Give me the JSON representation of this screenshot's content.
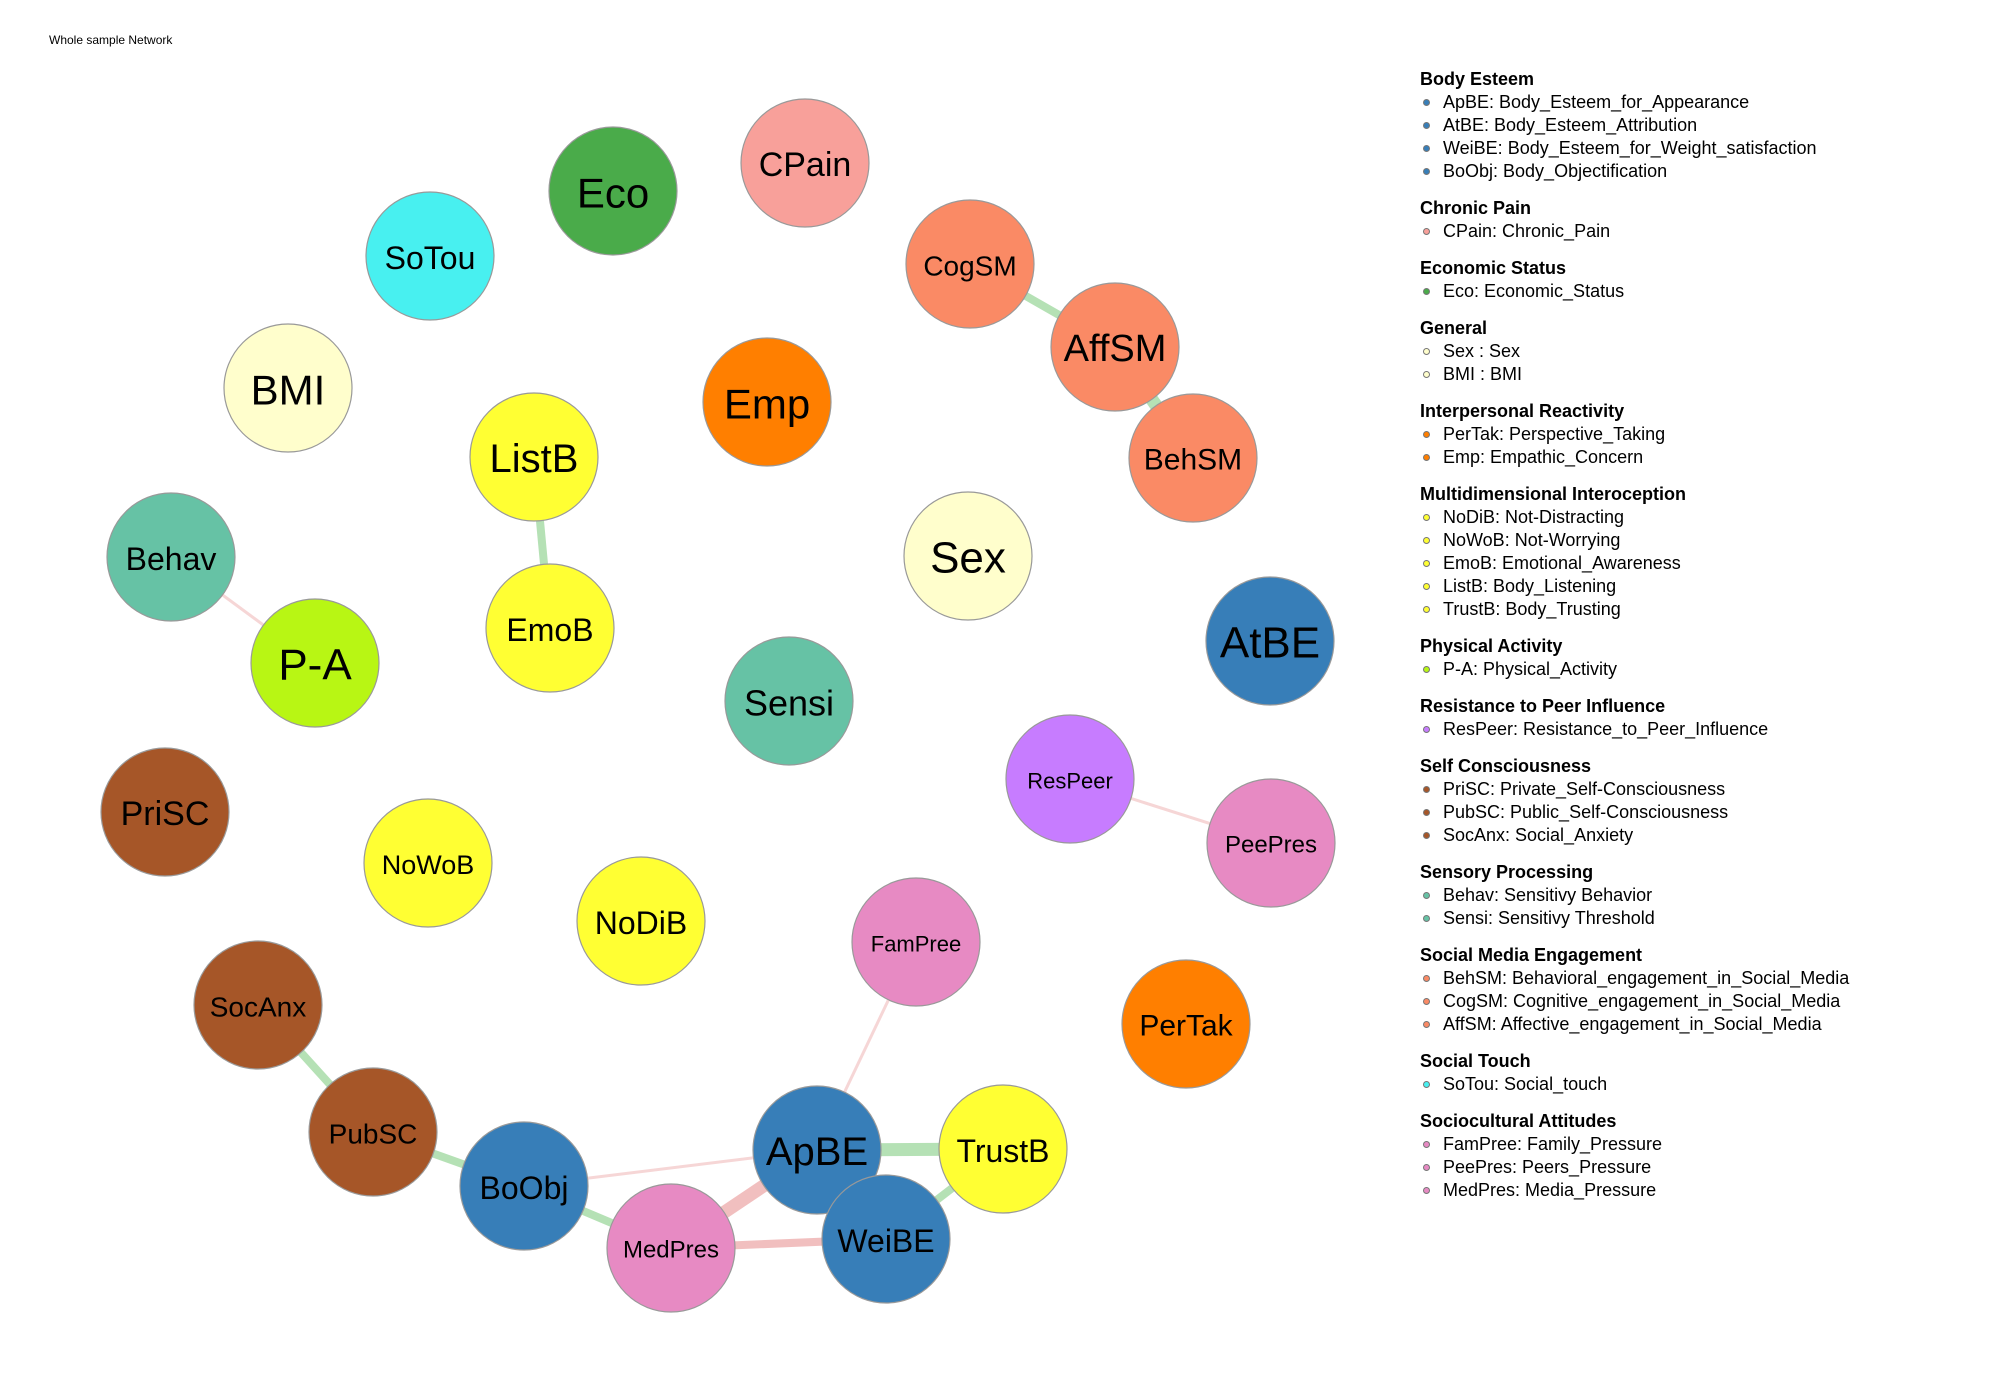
{
  "title": "Whole sample Network",
  "nodes": [
    {
      "id": "CPain",
      "label": "CPain",
      "color": "#f8a09a"
    },
    {
      "id": "Eco",
      "label": "Eco",
      "color": "#4aab4a"
    },
    {
      "id": "SoTou",
      "label": "SoTou",
      "color": "#48f0f0"
    },
    {
      "id": "BMI",
      "label": "BMI",
      "color": "#fffecc"
    },
    {
      "id": "CogSM",
      "label": "CogSM",
      "color": "#fa8a65"
    },
    {
      "id": "AffSM",
      "label": "AffSM",
      "color": "#fa8a65"
    },
    {
      "id": "BehSM",
      "label": "BehSM",
      "color": "#fa8a65"
    },
    {
      "id": "Emp",
      "label": "Emp",
      "color": "#ff7f00"
    },
    {
      "id": "ListB",
      "label": "ListB",
      "color": "#ffff33"
    },
    {
      "id": "EmoB",
      "label": "EmoB",
      "color": "#ffff33"
    },
    {
      "id": "Sex",
      "label": "Sex",
      "color": "#fffecc"
    },
    {
      "id": "Behav",
      "label": "Behav",
      "color": "#66c2a5"
    },
    {
      "id": "P-A",
      "label": "P-A",
      "color": "#b8f614"
    },
    {
      "id": "AtBE",
      "label": "AtBE",
      "color": "#377eb8"
    },
    {
      "id": "Sensi",
      "label": "Sensi",
      "color": "#66c2a5"
    },
    {
      "id": "ResPeer",
      "label": "ResPeer",
      "color": "#c77cff"
    },
    {
      "id": "PeePres",
      "label": "PeePres",
      "color": "#e78ac3"
    },
    {
      "id": "PriSC",
      "label": "PriSC",
      "color": "#a65628"
    },
    {
      "id": "NoWoB",
      "label": "NoWoB",
      "color": "#ffff33"
    },
    {
      "id": "NoDiB",
      "label": "NoDiB",
      "color": "#ffff33"
    },
    {
      "id": "FamPree",
      "label": "FamPree",
      "color": "#e78ac3"
    },
    {
      "id": "PerTak",
      "label": "PerTak",
      "color": "#ff7f00"
    },
    {
      "id": "SocAnx",
      "label": "SocAnx",
      "color": "#a65628"
    },
    {
      "id": "PubSC",
      "label": "PubSC",
      "color": "#a65628"
    },
    {
      "id": "BoObj",
      "label": "BoObj",
      "color": "#377eb8"
    },
    {
      "id": "ApBE",
      "label": "ApBE",
      "color": "#377eb8"
    },
    {
      "id": "TrustB",
      "label": "TrustB",
      "color": "#ffff33"
    },
    {
      "id": "MedPres",
      "label": "MedPres",
      "color": "#e78ac3"
    },
    {
      "id": "WeiBE",
      "label": "WeiBE",
      "color": "#377eb8"
    }
  ],
  "edges": [
    {
      "from": "CogSM",
      "to": "AffSM",
      "sign": "positive",
      "strength": "weak"
    },
    {
      "from": "AffSM",
      "to": "BehSM",
      "sign": "positive",
      "strength": "moderate"
    },
    {
      "from": "ListB",
      "to": "EmoB",
      "sign": "positive",
      "strength": "weak"
    },
    {
      "from": "Behav",
      "to": "P-A",
      "sign": "negative",
      "strength": "very weak"
    },
    {
      "from": "ResPeer",
      "to": "PeePres",
      "sign": "negative",
      "strength": "very weak"
    },
    {
      "from": "SocAnx",
      "to": "PubSC",
      "sign": "positive",
      "strength": "weak"
    },
    {
      "from": "PubSC",
      "to": "BoObj",
      "sign": "positive",
      "strength": "weak"
    },
    {
      "from": "BoObj",
      "to": "MedPres",
      "sign": "positive",
      "strength": "weak"
    },
    {
      "from": "BoObj",
      "to": "ApBE",
      "sign": "negative",
      "strength": "very weak"
    },
    {
      "from": "FamPree",
      "to": "ApBE",
      "sign": "negative",
      "strength": "very weak"
    },
    {
      "from": "ApBE",
      "to": "TrustB",
      "sign": "positive",
      "strength": "moderate"
    },
    {
      "from": "ApBE",
      "to": "MedPres",
      "sign": "negative",
      "strength": "moderate"
    },
    {
      "from": "ApBE",
      "to": "WeiBE",
      "sign": "positive",
      "strength": "moderate"
    },
    {
      "from": "MedPres",
      "to": "WeiBE",
      "sign": "negative",
      "strength": "weak"
    },
    {
      "from": "WeiBE",
      "to": "TrustB",
      "sign": "positive",
      "strength": "weak"
    }
  ],
  "edge_colors": {
    "positive": "#a8dca8",
    "negative": "#efb4b4"
  },
  "legend": [
    {
      "group": "Body Esteem",
      "color": "#377eb8",
      "items": [
        "ApBE: Body_Esteem_for_Appearance",
        "AtBE: Body_Esteem_Attribution",
        "WeiBE: Body_Esteem_for_Weight_satisfaction",
        "BoObj: Body_Objectification"
      ]
    },
    {
      "group": "Chronic Pain",
      "color": "#f8a09a",
      "items": [
        "CPain: Chronic_Pain"
      ]
    },
    {
      "group": "Economic Status",
      "color": "#4aab4a",
      "items": [
        "Eco: Economic_Status"
      ]
    },
    {
      "group": "General",
      "color": "#fffecc",
      "items": [
        "Sex : Sex",
        "BMI : BMI"
      ]
    },
    {
      "group": "Interpersonal Reactivity",
      "color": "#ff7f00",
      "items": [
        "PerTak: Perspective_Taking",
        "Emp: Empathic_Concern"
      ]
    },
    {
      "group": "Multidimensional Interoception",
      "color": "#ffff33",
      "items": [
        "NoDiB: Not-Distracting",
        "NoWoB: Not-Worrying",
        "EmoB: Emotional_Awareness",
        "ListB: Body_Listening",
        "TrustB: Body_Trusting"
      ]
    },
    {
      "group": "Physical Activity",
      "color": "#b8f614",
      "items": [
        "P-A: Physical_Activity"
      ]
    },
    {
      "group": "Resistance to Peer Influence",
      "color": "#c77cff",
      "items": [
        "ResPeer: Resistance_to_Peer_Influence"
      ]
    },
    {
      "group": "Self Consciousness",
      "color": "#a65628",
      "items": [
        "PriSC: Private_Self-Consciousness",
        "PubSC: Public_Self-Consciousness",
        "SocAnx: Social_Anxiety"
      ]
    },
    {
      "group": "Sensory Processing",
      "color": "#66c2a5",
      "items": [
        "Behav: Sensitivy Behavior",
        "Sensi: Sensitivy Threshold"
      ]
    },
    {
      "group": "Social Media Engagement",
      "color": "#fa8a65",
      "items": [
        "BehSM: Behavioral_engagement_in_Social_Media",
        "CogSM: Cognitive_engagement_in_Social_Media",
        "AffSM: Affective_engagement_in_Social_Media"
      ]
    },
    {
      "group": "Social Touch",
      "color": "#48f0f0",
      "items": [
        "SoTou: Social_touch"
      ]
    },
    {
      "group": "Sociocultural Attitudes",
      "color": "#e78ac3",
      "items": [
        "FamPree: Family_Pressure",
        "PeePres: Peers_Pressure",
        "MedPres: Media_Pressure"
      ]
    }
  ]
}
